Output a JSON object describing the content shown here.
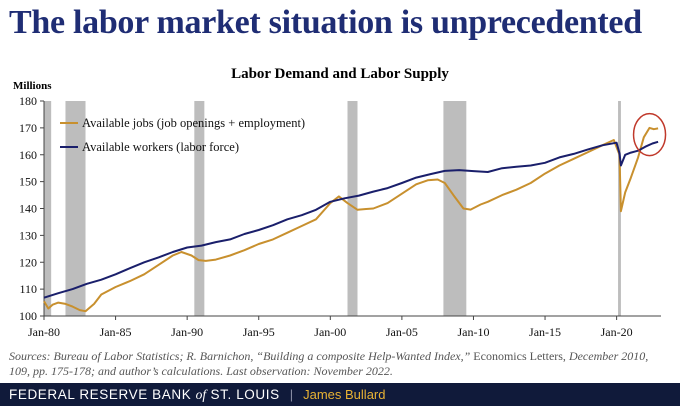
{
  "slide": {
    "title": "The labor market situation is unprecedented"
  },
  "source": {
    "lead": "Sources: Bureau of Labor Statistics; R. Barnichon, “Building a composite Help-Wanted Index,”",
    "journal": "Economics Letters,",
    "tail": "December 2010, 109, pp. 175-178; and author’s calculations. Last observation: November 2022."
  },
  "footer": {
    "bank_pre": "FEDERAL RESERVE BANK",
    "bank_of": "of",
    "bank_post": "ST. LOUIS",
    "separator": "|",
    "speaker": "James Bullard"
  },
  "colors": {
    "title": "#1f2d74",
    "jobs": "#c8902e",
    "workers": "#1a1f6b",
    "recession": "#bdbdbd",
    "highlight": "#c0392b",
    "footer_bg": "#101a3a",
    "speaker": "#e8b234"
  },
  "chart_data": {
    "type": "line",
    "title": "Labor Demand and Labor Supply",
    "ylabel": "Millions",
    "ylim": [
      100,
      180
    ],
    "yticks": [
      100,
      110,
      120,
      130,
      140,
      150,
      160,
      170,
      180
    ],
    "xlim": [
      1980.0,
      2023.1
    ],
    "xticks": [
      {
        "label": "Jan-80",
        "value": 1980
      },
      {
        "label": "Jan-85",
        "value": 1985
      },
      {
        "label": "Jan-90",
        "value": 1990
      },
      {
        "label": "Jan-95",
        "value": 1995
      },
      {
        "label": "Jan-00",
        "value": 2000
      },
      {
        "label": "Jan-05",
        "value": 2005
      },
      {
        "label": "Jan-10",
        "value": 2010
      },
      {
        "label": "Jan-15",
        "value": 2015
      },
      {
        "label": "Jan-20",
        "value": 2020
      }
    ],
    "grid": false,
    "legend_position": "top-left",
    "recessions": [
      [
        1980.0,
        1980.5
      ],
      [
        1981.5,
        1982.9
      ],
      [
        1990.5,
        1991.2
      ],
      [
        2001.2,
        2001.9
      ],
      [
        2007.9,
        2009.5
      ],
      [
        2020.1,
        2020.3
      ]
    ],
    "series": [
      {
        "name": "Available jobs (job openings + employment)",
        "x": [
          1980.0,
          1980.3,
          1980.6,
          1981.0,
          1981.5,
          1982.0,
          1982.5,
          1982.9,
          1983.5,
          1984.0,
          1985.0,
          1986.0,
          1987.0,
          1988.0,
          1989.0,
          1989.6,
          1990.3,
          1990.8,
          1991.3,
          1992.0,
          1993.0,
          1994.0,
          1995.0,
          1996.0,
          1997.0,
          1998.0,
          1999.0,
          2000.0,
          2000.6,
          2001.2,
          2001.9,
          2002.5,
          2003.0,
          2004.0,
          2005.0,
          2006.0,
          2006.8,
          2007.5,
          2008.0,
          2008.6,
          2009.3,
          2009.8,
          2010.5,
          2011.0,
          2012.0,
          2013.0,
          2014.0,
          2015.0,
          2016.0,
          2017.0,
          2018.0,
          2019.0,
          2019.8,
          2020.2,
          2020.3,
          2020.6,
          2021.0,
          2021.5,
          2021.9,
          2022.3,
          2022.6,
          2022.9
        ],
        "values": [
          105.5,
          102.8,
          104.2,
          105.0,
          104.5,
          103.5,
          102.2,
          101.8,
          104.5,
          108.0,
          110.8,
          113.0,
          115.5,
          119.0,
          122.5,
          123.8,
          122.5,
          120.8,
          120.5,
          121.0,
          122.5,
          124.5,
          126.8,
          128.5,
          131.0,
          133.5,
          136.0,
          142.0,
          144.5,
          142.0,
          139.5,
          139.8,
          140.0,
          142.0,
          145.5,
          149.0,
          150.5,
          150.8,
          149.5,
          145.0,
          140.0,
          139.6,
          141.5,
          142.5,
          145.0,
          147.0,
          149.5,
          153.0,
          156.0,
          158.5,
          161.0,
          163.5,
          165.5,
          160.0,
          139.0,
          146.0,
          151.5,
          159.0,
          166.5,
          170.0,
          169.5,
          169.8
        ]
      },
      {
        "name": "Available workers (labor force)",
        "x": [
          1980.0,
          1981.0,
          1982.0,
          1983.0,
          1984.0,
          1985.0,
          1986.0,
          1987.0,
          1988.0,
          1989.0,
          1990.0,
          1991.0,
          1992.0,
          1993.0,
          1994.0,
          1995.0,
          1996.0,
          1997.0,
          1998.0,
          1999.0,
          2000.0,
          2001.0,
          2002.0,
          2003.0,
          2004.0,
          2005.0,
          2006.0,
          2007.0,
          2008.0,
          2009.0,
          2010.0,
          2011.0,
          2012.0,
          2013.0,
          2014.0,
          2015.0,
          2016.0,
          2017.0,
          2018.0,
          2019.0,
          2020.0,
          2020.2,
          2020.3,
          2020.6,
          2021.0,
          2021.5,
          2022.0,
          2022.5,
          2022.9
        ],
        "values": [
          106.8,
          108.5,
          110.0,
          112.0,
          113.5,
          115.5,
          117.8,
          120.0,
          121.8,
          123.8,
          125.5,
          126.2,
          127.5,
          128.5,
          130.5,
          132.0,
          133.8,
          136.0,
          137.5,
          139.5,
          142.5,
          143.8,
          144.8,
          146.3,
          147.6,
          149.5,
          151.5,
          152.8,
          154.0,
          154.3,
          153.9,
          153.6,
          155.0,
          155.5,
          156.0,
          157.0,
          159.0,
          160.3,
          162.0,
          163.5,
          164.5,
          160.5,
          156.0,
          160.0,
          160.8,
          161.5,
          163.0,
          164.2,
          164.8
        ]
      }
    ],
    "annotations": [
      {
        "type": "ellipse-highlight",
        "x": 2022.3,
        "y": 167.5,
        "note": ""
      }
    ]
  }
}
